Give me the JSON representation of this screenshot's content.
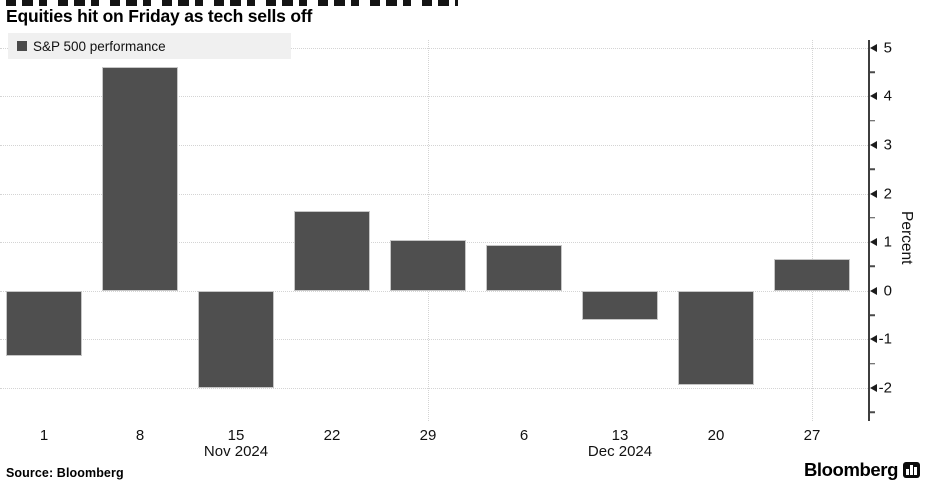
{
  "header": {
    "subtitle": "Equities hit on Friday as tech sells off",
    "top_line_note": "cropped headline, only bottoms of letters visible"
  },
  "legend": {
    "label": "S&P 500 performance",
    "marker_color": "#4a4a4a",
    "background": "#f0f0f0"
  },
  "chart_data": {
    "type": "bar",
    "series_name": "S&P 500 performance",
    "categories": [
      "1",
      "8",
      "15",
      "22",
      "29",
      "6",
      "13",
      "20",
      "27"
    ],
    "values": [
      -1.35,
      4.6,
      -2.0,
      1.65,
      1.05,
      0.95,
      -0.6,
      -1.95,
      0.65
    ],
    "month_labels": [
      {
        "text": "Nov 2024",
        "category_index": 2
      },
      {
        "text": "Dec 2024",
        "category_index": 6
      }
    ],
    "ylabel": "Percent",
    "xlabel": "",
    "title": "",
    "ylim": [
      -2.5,
      5.2
    ],
    "yticks_major": [
      5,
      4,
      3,
      2,
      1,
      0,
      -1,
      -2
    ],
    "yticks_minor": [
      4.5,
      3.5,
      2.5,
      1.5,
      0.5,
      -0.5,
      -1.5,
      -2.5
    ],
    "grid": "horizontal dotted at integers, vertical dotted at category indices 4 and 8",
    "vgrid_category_indices": [
      4,
      8
    ],
    "legend_position": "top-left",
    "axis_side": "right",
    "bar_color": "#4f4f4f",
    "grid_color": "#d4d4d4"
  },
  "footer": {
    "source": "Source: Bloomberg",
    "brand": "Bloomberg",
    "brand_icon": "bloomberg-bug-icon"
  }
}
